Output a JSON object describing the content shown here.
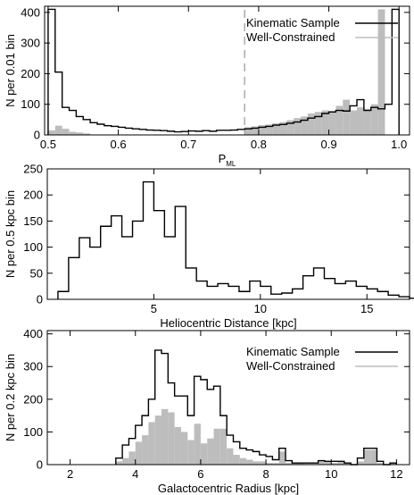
{
  "chart_data": [
    {
      "type": "histogram",
      "xlabel": "P",
      "xlabel_sub": "ML",
      "ylabel": "N per 0.01 bin",
      "xlim": [
        0.495,
        1.015
      ],
      "ylim": [
        0,
        420
      ],
      "xticks": [
        0.5,
        0.6,
        0.7,
        0.8,
        0.9,
        1.0
      ],
      "xtick_labels": [
        "0.5",
        "0.6",
        "0.7",
        "0.8",
        "0.9",
        "1.0"
      ],
      "yticks": [
        0,
        100,
        200,
        300,
        400
      ],
      "bin_width": 0.01,
      "threshold": 0.78,
      "legend_position": "top-right",
      "series": [
        {
          "name": "Kinematic Sample",
          "style": "outline",
          "x_start": 0.5,
          "values": [
            410,
            205,
            90,
            80,
            60,
            50,
            40,
            35,
            30,
            28,
            25,
            22,
            20,
            18,
            16,
            15,
            14,
            12,
            10,
            11,
            13,
            12,
            14,
            12,
            15,
            15,
            16,
            18,
            20,
            22,
            25,
            28,
            32,
            34,
            38,
            42,
            48,
            55,
            60,
            70,
            75,
            80,
            78,
            95,
            115,
            80,
            90,
            85,
            100,
            410
          ]
        },
        {
          "name": "Well-Constrained",
          "style": "filled",
          "x_start": 0.78,
          "values": [
            25,
            28,
            32,
            34,
            38,
            42,
            48,
            55,
            60,
            70,
            75,
            80,
            78,
            95,
            115,
            80,
            90,
            85,
            100,
            410
          ],
          "pre_values_x_start": 0.5,
          "pre_values": [
            15,
            30,
            20,
            10,
            8,
            5
          ]
        }
      ]
    },
    {
      "type": "histogram",
      "xlabel": "Heliocentric Distance  [kpc]",
      "ylabel": "N per 0.5 kpc bin",
      "xlim": [
        0,
        17
      ],
      "ylim": [
        0,
        250
      ],
      "xticks": [
        5,
        10,
        15
      ],
      "xtick_labels": [
        "5",
        "10",
        "15"
      ],
      "yticks": [
        0,
        50,
        100,
        150,
        200,
        250
      ],
      "bin_width": 0.5,
      "series": [
        {
          "name": "Kinematic Sample",
          "style": "outline",
          "x_start": 0.5,
          "values": [
            15,
            80,
            118,
            100,
            140,
            160,
            120,
            150,
            225,
            170,
            120,
            178,
            60,
            35,
            25,
            30,
            25,
            15,
            35,
            25,
            10,
            12,
            20,
            45,
            60,
            40,
            30,
            35,
            25,
            20,
            15,
            8,
            5,
            2
          ]
        }
      ]
    },
    {
      "type": "histogram",
      "xlabel": "Galactocentric Radius  [kpc]",
      "ylabel": "N per 0.2 kpc bin",
      "xlim": [
        1.3,
        12.4
      ],
      "ylim": [
        0,
        410
      ],
      "xticks": [
        2,
        4,
        6,
        8,
        10,
        12
      ],
      "xtick_labels": [
        "2",
        "4",
        "6",
        "8",
        "10",
        "12"
      ],
      "yticks": [
        0,
        100,
        200,
        300,
        400
      ],
      "bin_width": 0.2,
      "legend_position": "top-right",
      "series": [
        {
          "name": "Kinematic Sample",
          "style": "outline",
          "x_start": 3.4,
          "values": [
            20,
            60,
            80,
            120,
            150,
            200,
            350,
            340,
            250,
            210,
            210,
            150,
            270,
            260,
            230,
            240,
            150,
            90,
            70,
            50,
            45,
            40,
            30,
            25,
            15,
            50,
            12,
            5,
            5,
            5,
            5,
            12,
            10,
            10,
            10,
            5,
            0,
            20,
            50,
            50,
            10,
            0,
            5
          ]
        },
        {
          "name": "Well-Constrained",
          "style": "filled",
          "x_start": 3.4,
          "values": [
            10,
            20,
            40,
            70,
            90,
            130,
            150,
            170,
            160,
            115,
            100,
            75,
            125,
            65,
            80,
            110,
            110,
            50,
            30,
            20,
            15,
            10,
            10,
            5,
            5,
            40,
            5,
            5,
            3,
            2,
            2,
            10,
            8,
            5,
            8,
            3,
            0,
            10,
            45,
            45,
            5,
            0,
            3
          ]
        }
      ]
    }
  ]
}
